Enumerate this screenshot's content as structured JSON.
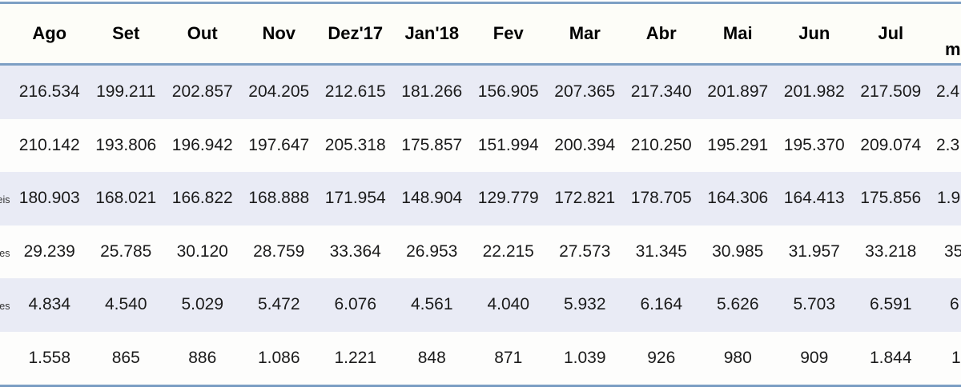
{
  "colors": {
    "border_blue": "#7d9fc4",
    "band_lavender": "#e9ebf5",
    "header_bg": "#fdfdf8",
    "text": "#1b1b1b"
  },
  "table": {
    "columns": [
      "Ago",
      "Set",
      "Out",
      "Nov",
      "Dez'17",
      "Jan'18",
      "Fev",
      "Mar",
      "Abr",
      "Mai",
      "Jun",
      "Jul"
    ],
    "last_column_header_fragment": "m",
    "rows": [
      {
        "label_fragment": "",
        "values": [
          "216.534",
          "199.211",
          "202.857",
          "204.205",
          "212.615",
          "181.266",
          "156.905",
          "207.365",
          "217.340",
          "201.897",
          "201.982",
          "217.509"
        ],
        "last_fragment": "2.4"
      },
      {
        "label_fragment": "",
        "values": [
          "210.142",
          "193.806",
          "196.942",
          "197.647",
          "205.318",
          "175.857",
          "151.994",
          "200.394",
          "210.250",
          "195.291",
          "195.370",
          "209.074"
        ],
        "last_fragment": "2.3"
      },
      {
        "label_fragment": "eis",
        "values": [
          "180.903",
          "168.021",
          "166.822",
          "168.888",
          "171.954",
          "148.904",
          "129.779",
          "172.821",
          "178.705",
          "164.306",
          "164.413",
          "175.856"
        ],
        "last_fragment": "1.9"
      },
      {
        "label_fragment": "es",
        "values": [
          "29.239",
          "25.785",
          "30.120",
          "28.759",
          "33.364",
          "26.953",
          "22.215",
          "27.573",
          "31.345",
          "30.985",
          "31.957",
          "33.218"
        ],
        "last_fragment": "35"
      },
      {
        "label_fragment": "es",
        "values": [
          "4.834",
          "4.540",
          "5.029",
          "5.472",
          "6.076",
          "4.561",
          "4.040",
          "5.932",
          "6.164",
          "5.626",
          "5.703",
          "6.591"
        ],
        "last_fragment": "6"
      },
      {
        "label_fragment": "",
        "values": [
          "1.558",
          "865",
          "886",
          "1.086",
          "1.221",
          "848",
          "871",
          "1.039",
          "926",
          "980",
          "909",
          "1.844"
        ],
        "last_fragment": "1"
      }
    ]
  },
  "chart_data": {
    "type": "table",
    "title": "",
    "columns": [
      "Ago",
      "Set",
      "Out",
      "Nov",
      "Dez'17",
      "Jan'18",
      "Fev",
      "Mar",
      "Abr",
      "Mai",
      "Jun",
      "Jul",
      "m"
    ],
    "rows": [
      {
        "label": "",
        "cells": [
          "216.534",
          "199.211",
          "202.857",
          "204.205",
          "212.615",
          "181.266",
          "156.905",
          "207.365",
          "217.340",
          "201.897",
          "201.982",
          "217.509",
          "2.4"
        ]
      },
      {
        "label": "",
        "cells": [
          "210.142",
          "193.806",
          "196.942",
          "197.647",
          "205.318",
          "175.857",
          "151.994",
          "200.394",
          "210.250",
          "195.291",
          "195.370",
          "209.074",
          "2.3"
        ]
      },
      {
        "label": "eis",
        "cells": [
          "180.903",
          "168.021",
          "166.822",
          "168.888",
          "171.954",
          "148.904",
          "129.779",
          "172.821",
          "178.705",
          "164.306",
          "164.413",
          "175.856",
          "1.9"
        ]
      },
      {
        "label": "es",
        "cells": [
          "29.239",
          "25.785",
          "30.120",
          "28.759",
          "33.364",
          "26.953",
          "22.215",
          "27.573",
          "31.345",
          "30.985",
          "31.957",
          "33.218",
          "35"
        ]
      },
      {
        "label": "es",
        "cells": [
          "4.834",
          "4.540",
          "5.029",
          "5.472",
          "6.076",
          "4.561",
          "4.040",
          "5.932",
          "6.164",
          "5.626",
          "5.703",
          "6.591",
          "6"
        ]
      },
      {
        "label": "",
        "cells": [
          "1.558",
          "865",
          "886",
          "1.086",
          "1.221",
          "848",
          "871",
          "1.039",
          "926",
          "980",
          "909",
          "1.844",
          "1"
        ]
      }
    ],
    "layout": {
      "striped_rows": [
        0,
        2,
        4
      ],
      "clipped_left_label_column": true,
      "clipped_right_total_column": true
    }
  }
}
